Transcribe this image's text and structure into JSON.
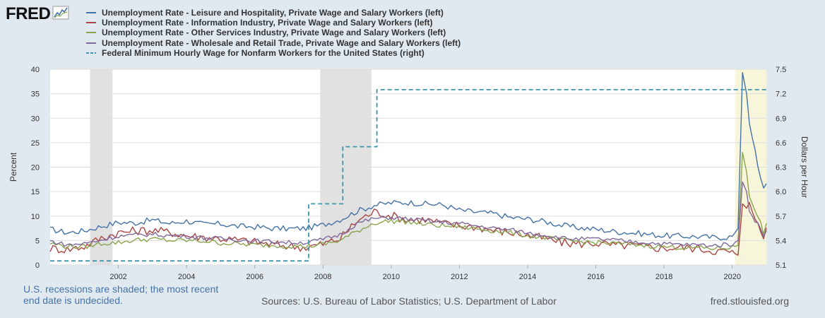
{
  "brand": {
    "logo_text": "FRED",
    "logo_icon": "chart-line-icon"
  },
  "legend": [
    {
      "label": "Unemployment Rate - Leisure and Hospitality, Private Wage and Salary Workers (left)",
      "color": "#4572a7",
      "dash": false
    },
    {
      "label": "Unemployment Rate - Information Industry, Private Wage and Salary Workers (left)",
      "color": "#aa4643",
      "dash": false
    },
    {
      "label": "Unemployment Rate - Other Services Industry, Private Wage and Salary Workers (left)",
      "color": "#89a54e",
      "dash": false
    },
    {
      "label": "Unemployment Rate - Wholesale and Retail Trade, Private Wage and Salary Workers (left)",
      "color": "#80699b",
      "dash": false
    },
    {
      "label": "Federal Minimum Hourly Wage for Nonfarm Workers for the United States (right)",
      "color": "#3d96ae",
      "dash": true
    }
  ],
  "footer": {
    "note": "U.S. recessions are shaded; the most recent end date is undecided.",
    "sources": "Sources: U.S. Bureau of Labor Statistics; U.S. Department of Labor",
    "url": "fred.stlouisfed.org"
  },
  "chart_data": {
    "type": "line",
    "title": "",
    "xlabel": "",
    "ylabel": "Percent",
    "ylabel_right": "Dollars per Hour",
    "xlim": [
      2000.0,
      2021.0
    ],
    "ylim": [
      0,
      40
    ],
    "ylim_right": [
      5.1,
      7.5
    ],
    "x_ticks": [
      "2002",
      "2004",
      "2006",
      "2008",
      "2010",
      "2012",
      "2014",
      "2016",
      "2018",
      "2020"
    ],
    "y_ticks_left": [
      "0",
      "5",
      "10",
      "15",
      "20",
      "25",
      "30",
      "35",
      "40"
    ],
    "y_ticks_right": [
      "5.1",
      "5.4",
      "5.7",
      "6.0",
      "6.3",
      "6.6",
      "6.9",
      "7.2",
      "7.5"
    ],
    "recessions": [
      [
        2001.17,
        2001.83
      ],
      [
        2007.92,
        2009.42
      ]
    ],
    "current_recession": [
      2020.08,
      2021.0
    ],
    "series": [
      {
        "name": "Unemployment Rate - Leisure and Hospitality, Private Wage and Salary Workers (left)",
        "axis": "left",
        "color": "#4572a7",
        "dash": false,
        "points": [
          [
            2000.0,
            7.3
          ],
          [
            2000.5,
            6.6
          ],
          [
            2001.0,
            7.0
          ],
          [
            2001.5,
            7.9
          ],
          [
            2002.0,
            8.7
          ],
          [
            2002.5,
            8.6
          ],
          [
            2003.0,
            9.2
          ],
          [
            2003.5,
            8.5
          ],
          [
            2004.0,
            9.0
          ],
          [
            2004.5,
            8.3
          ],
          [
            2005.0,
            8.4
          ],
          [
            2005.5,
            7.9
          ],
          [
            2006.0,
            7.8
          ],
          [
            2006.5,
            7.5
          ],
          [
            2007.0,
            7.4
          ],
          [
            2007.5,
            7.5
          ],
          [
            2008.0,
            8.2
          ],
          [
            2008.5,
            9.3
          ],
          [
            2009.0,
            11.0
          ],
          [
            2009.5,
            12.2
          ],
          [
            2010.0,
            12.7
          ],
          [
            2010.5,
            12.8
          ],
          [
            2011.0,
            12.5
          ],
          [
            2011.5,
            12.3
          ],
          [
            2012.0,
            11.2
          ],
          [
            2012.5,
            10.8
          ],
          [
            2013.0,
            10.5
          ],
          [
            2013.5,
            9.7
          ],
          [
            2014.0,
            9.4
          ],
          [
            2014.5,
            8.9
          ],
          [
            2015.0,
            8.1
          ],
          [
            2015.5,
            7.6
          ],
          [
            2016.0,
            7.3
          ],
          [
            2016.5,
            6.9
          ],
          [
            2017.0,
            6.6
          ],
          [
            2017.5,
            6.3
          ],
          [
            2018.0,
            6.0
          ],
          [
            2018.5,
            5.9
          ],
          [
            2019.0,
            5.8
          ],
          [
            2019.5,
            5.6
          ],
          [
            2020.0,
            5.8
          ],
          [
            2020.17,
            7.5
          ],
          [
            2020.3,
            39.3
          ],
          [
            2020.42,
            35.0
          ],
          [
            2020.5,
            29.0
          ],
          [
            2020.67,
            23.0
          ],
          [
            2020.83,
            18.0
          ],
          [
            2020.92,
            16.0
          ],
          [
            2021.0,
            16.6
          ]
        ]
      },
      {
        "name": "Unemployment Rate - Information Industry, Private Wage and Salary Workers (left)",
        "axis": "left",
        "color": "#aa4643",
        "dash": false,
        "points": [
          [
            2000.0,
            3.4
          ],
          [
            2000.5,
            3.2
          ],
          [
            2001.0,
            3.8
          ],
          [
            2001.5,
            5.5
          ],
          [
            2002.0,
            6.6
          ],
          [
            2002.5,
            7.0
          ],
          [
            2003.0,
            7.1
          ],
          [
            2003.5,
            6.7
          ],
          [
            2004.0,
            6.0
          ],
          [
            2004.5,
            5.7
          ],
          [
            2005.0,
            5.4
          ],
          [
            2005.5,
            5.1
          ],
          [
            2006.0,
            4.7
          ],
          [
            2006.5,
            4.2
          ],
          [
            2007.0,
            3.9
          ],
          [
            2007.5,
            3.6
          ],
          [
            2008.0,
            4.3
          ],
          [
            2008.5,
            5.4
          ],
          [
            2009.0,
            9.0
          ],
          [
            2009.5,
            10.9
          ],
          [
            2010.0,
            10.1
          ],
          [
            2010.5,
            9.2
          ],
          [
            2011.0,
            9.3
          ],
          [
            2011.5,
            8.5
          ],
          [
            2012.0,
            8.0
          ],
          [
            2012.5,
            7.8
          ],
          [
            2013.0,
            7.1
          ],
          [
            2013.5,
            6.6
          ],
          [
            2014.0,
            6.1
          ],
          [
            2014.5,
            5.4
          ],
          [
            2015.0,
            4.6
          ],
          [
            2015.5,
            4.3
          ],
          [
            2016.0,
            4.5
          ],
          [
            2016.5,
            4.0
          ],
          [
            2017.0,
            4.0
          ],
          [
            2017.5,
            3.7
          ],
          [
            2018.0,
            3.4
          ],
          [
            2018.5,
            3.6
          ],
          [
            2019.0,
            3.4
          ],
          [
            2019.5,
            2.9
          ],
          [
            2020.0,
            2.6
          ],
          [
            2020.17,
            2.0
          ],
          [
            2020.3,
            12.5
          ],
          [
            2020.42,
            11.6
          ],
          [
            2020.5,
            12.8
          ],
          [
            2020.67,
            9.0
          ],
          [
            2020.83,
            7.1
          ],
          [
            2020.92,
            5.8
          ],
          [
            2021.0,
            7.6
          ]
        ]
      },
      {
        "name": "Unemployment Rate - Other Services Industry, Private Wage and Salary Workers (left)",
        "axis": "left",
        "color": "#89a54e",
        "dash": false,
        "points": [
          [
            2000.0,
            4.4
          ],
          [
            2000.5,
            3.8
          ],
          [
            2001.0,
            3.7
          ],
          [
            2001.5,
            4.4
          ],
          [
            2002.0,
            4.6
          ],
          [
            2002.5,
            5.1
          ],
          [
            2003.0,
            5.3
          ],
          [
            2003.5,
            5.0
          ],
          [
            2004.0,
            5.0
          ],
          [
            2004.5,
            4.9
          ],
          [
            2005.0,
            4.5
          ],
          [
            2005.5,
            4.3
          ],
          [
            2006.0,
            4.1
          ],
          [
            2006.5,
            4.0
          ],
          [
            2007.0,
            3.9
          ],
          [
            2007.5,
            3.8
          ],
          [
            2008.0,
            4.2
          ],
          [
            2008.5,
            5.0
          ],
          [
            2009.0,
            6.9
          ],
          [
            2009.5,
            8.6
          ],
          [
            2010.0,
            9.0
          ],
          [
            2010.5,
            8.8
          ],
          [
            2011.0,
            8.3
          ],
          [
            2011.5,
            8.0
          ],
          [
            2012.0,
            7.8
          ],
          [
            2012.5,
            7.4
          ],
          [
            2013.0,
            7.0
          ],
          [
            2013.5,
            6.6
          ],
          [
            2014.0,
            6.0
          ],
          [
            2014.5,
            5.6
          ],
          [
            2015.0,
            5.0
          ],
          [
            2015.5,
            4.8
          ],
          [
            2016.0,
            4.6
          ],
          [
            2016.5,
            4.4
          ],
          [
            2017.0,
            4.2
          ],
          [
            2017.5,
            4.0
          ],
          [
            2018.0,
            3.7
          ],
          [
            2018.5,
            3.6
          ],
          [
            2019.0,
            3.5
          ],
          [
            2019.5,
            3.4
          ],
          [
            2020.0,
            3.6
          ],
          [
            2020.17,
            4.0
          ],
          [
            2020.3,
            23.0
          ],
          [
            2020.42,
            19.0
          ],
          [
            2020.5,
            14.0
          ],
          [
            2020.67,
            11.0
          ],
          [
            2020.83,
            9.0
          ],
          [
            2020.92,
            6.5
          ],
          [
            2021.0,
            8.5
          ]
        ]
      },
      {
        "name": "Unemployment Rate - Wholesale and Retail Trade, Private Wage and Salary Workers (left)",
        "axis": "left",
        "color": "#80699b",
        "dash": false,
        "points": [
          [
            2000.0,
            4.9
          ],
          [
            2000.5,
            4.1
          ],
          [
            2001.0,
            4.4
          ],
          [
            2001.5,
            5.1
          ],
          [
            2002.0,
            5.9
          ],
          [
            2002.5,
            6.1
          ],
          [
            2003.0,
            6.3
          ],
          [
            2003.5,
            6.0
          ],
          [
            2004.0,
            5.9
          ],
          [
            2004.5,
            5.6
          ],
          [
            2005.0,
            5.4
          ],
          [
            2005.5,
            5.2
          ],
          [
            2006.0,
            4.9
          ],
          [
            2006.5,
            4.8
          ],
          [
            2007.0,
            4.6
          ],
          [
            2007.5,
            4.6
          ],
          [
            2008.0,
            5.2
          ],
          [
            2008.5,
            6.2
          ],
          [
            2009.0,
            8.5
          ],
          [
            2009.5,
            9.5
          ],
          [
            2010.0,
            9.7
          ],
          [
            2010.5,
            9.4
          ],
          [
            2011.0,
            9.0
          ],
          [
            2011.5,
            8.7
          ],
          [
            2012.0,
            8.5
          ],
          [
            2012.5,
            8.0
          ],
          [
            2013.0,
            7.5
          ],
          [
            2013.5,
            7.2
          ],
          [
            2014.0,
            6.6
          ],
          [
            2014.5,
            6.1
          ],
          [
            2015.0,
            5.5
          ],
          [
            2015.5,
            5.3
          ],
          [
            2016.0,
            5.3
          ],
          [
            2016.5,
            5.1
          ],
          [
            2017.0,
            4.8
          ],
          [
            2017.5,
            4.6
          ],
          [
            2018.0,
            4.3
          ],
          [
            2018.5,
            4.2
          ],
          [
            2019.0,
            4.1
          ],
          [
            2019.5,
            4.0
          ],
          [
            2020.0,
            4.3
          ],
          [
            2020.17,
            5.0
          ],
          [
            2020.3,
            17.0
          ],
          [
            2020.42,
            15.0
          ],
          [
            2020.5,
            11.0
          ],
          [
            2020.67,
            9.0
          ],
          [
            2020.83,
            7.5
          ],
          [
            2020.92,
            6.0
          ],
          [
            2021.0,
            7.0
          ]
        ]
      },
      {
        "name": "Federal Minimum Hourly Wage for Nonfarm Workers for the United States (right)",
        "axis": "right",
        "color": "#3d96ae",
        "dash": true,
        "step": true,
        "points": [
          [
            2000.0,
            5.15
          ],
          [
            2007.58,
            5.15
          ],
          [
            2007.58,
            5.85
          ],
          [
            2008.58,
            5.85
          ],
          [
            2008.58,
            6.55
          ],
          [
            2009.58,
            6.55
          ],
          [
            2009.58,
            7.25
          ],
          [
            2021.0,
            7.25
          ]
        ]
      }
    ]
  }
}
